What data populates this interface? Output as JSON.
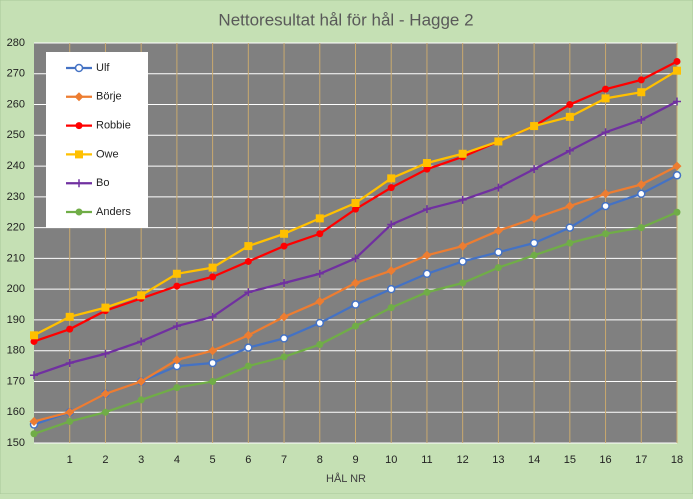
{
  "chart_data": {
    "type": "line",
    "title": "Nettoresultat  hål för hål - Hagge 2",
    "x_label": "HÅL NR",
    "x": [
      0,
      1,
      2,
      3,
      4,
      5,
      6,
      7,
      8,
      9,
      10,
      11,
      12,
      13,
      14,
      15,
      16,
      17,
      18
    ],
    "xlim": [
      0,
      18
    ],
    "xticks": [
      1,
      2,
      3,
      4,
      5,
      6,
      7,
      8,
      9,
      10,
      11,
      12,
      13,
      14,
      15,
      16,
      17,
      18
    ],
    "ylim": [
      150,
      280
    ],
    "yticks": [
      150,
      160,
      170,
      180,
      190,
      200,
      210,
      220,
      230,
      240,
      250,
      260,
      270,
      280
    ],
    "grid": true,
    "legend": "upper left",
    "series": [
      {
        "name": "Ulf",
        "color": "#4472c4",
        "marker": "open-circle",
        "values": [
          156,
          160,
          166,
          170,
          175,
          176,
          181,
          184,
          189,
          195,
          200,
          205,
          209,
          212,
          215,
          220,
          227,
          231,
          237
        ]
      },
      {
        "name": "Börje",
        "color": "#ed7d31",
        "marker": "diamond",
        "values": [
          157,
          160,
          166,
          170,
          177,
          180,
          185,
          191,
          196,
          202,
          206,
          211,
          214,
          219,
          223,
          227,
          231,
          234,
          240
        ]
      },
      {
        "name": "Robbie",
        "color": "#ff0000",
        "marker": "circle",
        "values": [
          183,
          187,
          193,
          197,
          201,
          204,
          209,
          214,
          218,
          226,
          233,
          239,
          243,
          248,
          253,
          260,
          265,
          268,
          274
        ]
      },
      {
        "name": "Owe",
        "color": "#ffc000",
        "marker": "square",
        "values": [
          185,
          191,
          194,
          198,
          205,
          207,
          214,
          218,
          223,
          228,
          236,
          241,
          244,
          248,
          253,
          256,
          262,
          264,
          271
        ]
      },
      {
        "name": "Bo",
        "color": "#7030a0",
        "marker": "plus",
        "values": [
          172,
          176,
          179,
          183,
          188,
          191,
          199,
          202,
          205,
          210,
          221,
          226,
          229,
          233,
          239,
          245,
          251,
          255,
          261
        ]
      },
      {
        "name": "Anders",
        "color": "#70ad47",
        "marker": "circle",
        "values": [
          153,
          157,
          160,
          164,
          168,
          170,
          175,
          178,
          182,
          188,
          194,
          199,
          202,
          207,
          211,
          215,
          218,
          220,
          225
        ]
      }
    ]
  }
}
